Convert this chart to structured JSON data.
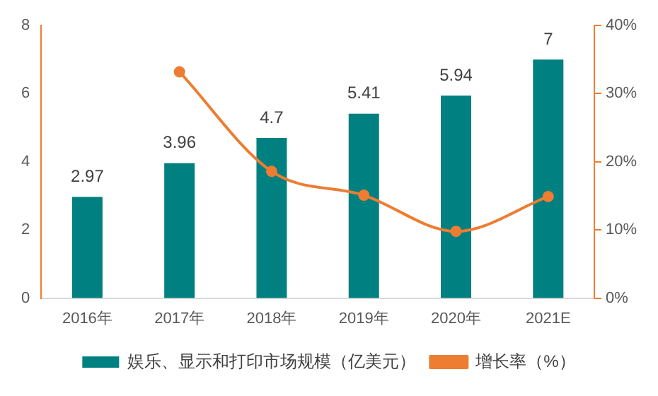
{
  "chart_data": {
    "type": "bar",
    "categories": [
      "2016年",
      "2017年",
      "2018年",
      "2019年",
      "2020年",
      "2021E"
    ],
    "series": [
      {
        "name": "娱乐、显示和打印市场规模（亿美元）",
        "color": "#008080",
        "values": [
          2.97,
          3.96,
          4.7,
          5.41,
          5.94,
          7
        ],
        "value_labels": [
          "2.97",
          "3.96",
          "4.7",
          "5.41",
          "5.94",
          "7"
        ]
      },
      {
        "name": "增长率（%）",
        "type": "line",
        "axis": "y2",
        "color": "#ed7d31",
        "values": [
          null,
          33.2,
          18.6,
          15.1,
          9.8,
          14.9
        ]
      }
    ],
    "ylim": [
      0,
      8
    ],
    "yticks": [
      0,
      2,
      4,
      6,
      8
    ],
    "y2lim": [
      0,
      40
    ],
    "y2ticks": [
      {
        "value": 0,
        "label": "0%"
      },
      {
        "value": 10,
        "label": "10%"
      },
      {
        "value": 20,
        "label": "20%"
      },
      {
        "value": 30,
        "label": "30%"
      },
      {
        "value": 40,
        "label": "40%"
      }
    ],
    "grid": false,
    "legend": "bottom",
    "marker": "circle",
    "line_style": "solid"
  }
}
